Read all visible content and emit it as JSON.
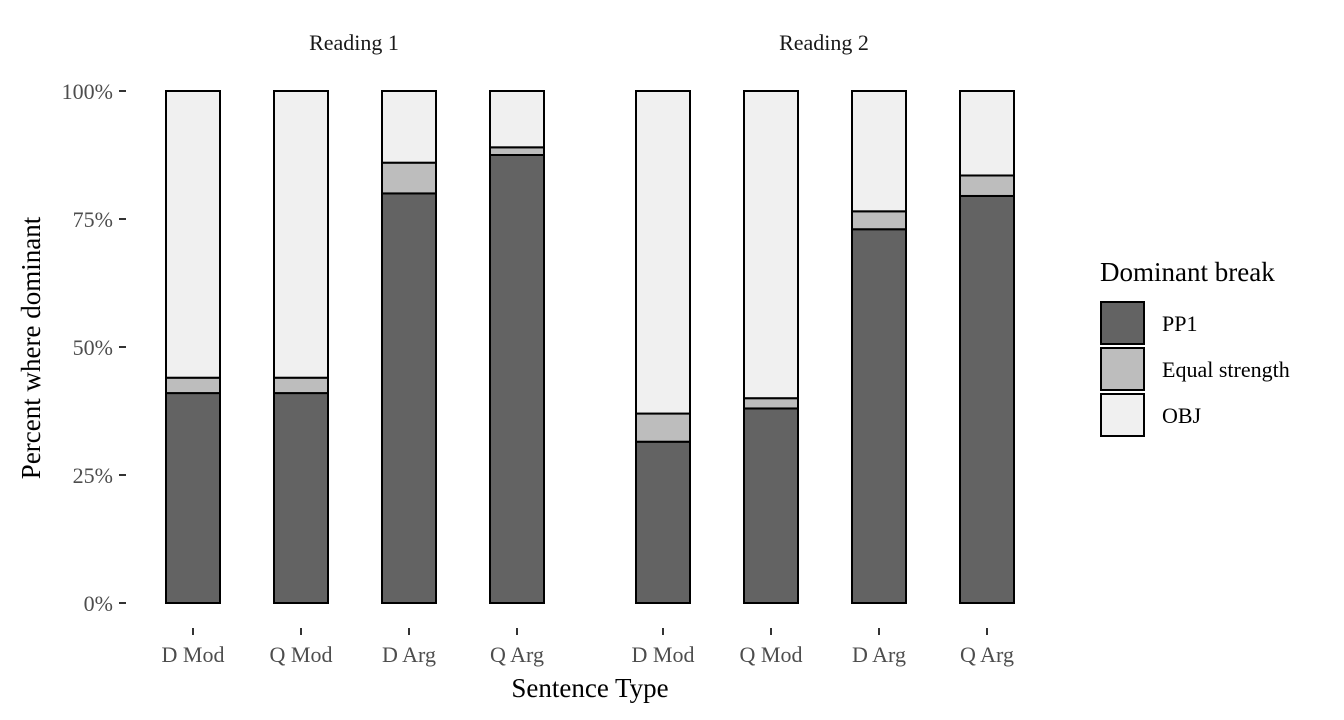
{
  "chart_data": {
    "type": "bar",
    "stacked": true,
    "y_format": "percent",
    "xlabel": "Sentence Type",
    "ylabel": "Percent where dominant",
    "ylim": [
      0,
      1
    ],
    "yticks": [
      0,
      0.25,
      0.5,
      0.75,
      1
    ],
    "ytick_labels": [
      "0%",
      "25%",
      "50%",
      "75%",
      "100%"
    ],
    "grid": false,
    "legend": {
      "title": "Dominant break",
      "position": "right"
    },
    "series_styles": [
      {
        "name": "PP1",
        "color": "#636363"
      },
      {
        "name": "Equal strength",
        "color": "#bdbdbd"
      },
      {
        "name": "OBJ",
        "color": "#f0f0f0"
      }
    ],
    "facets": [
      {
        "title": "Reading 1",
        "categories": [
          "D Mod",
          "Q Mod",
          "D Arg",
          "Q Arg"
        ],
        "series": [
          {
            "name": "PP1",
            "values": [
              0.41,
              0.41,
              0.8,
              0.875
            ]
          },
          {
            "name": "Equal strength",
            "values": [
              0.03,
              0.03,
              0.06,
              0.015
            ]
          },
          {
            "name": "OBJ",
            "values": [
              0.56,
              0.56,
              0.14,
              0.11
            ]
          }
        ]
      },
      {
        "title": "Reading 2",
        "categories": [
          "D Mod",
          "Q Mod",
          "D Arg",
          "Q Arg"
        ],
        "series": [
          {
            "name": "PP1",
            "values": [
              0.315,
              0.38,
              0.73,
              0.795
            ]
          },
          {
            "name": "Equal strength",
            "values": [
              0.055,
              0.02,
              0.035,
              0.04
            ]
          },
          {
            "name": "OBJ",
            "values": [
              0.63,
              0.6,
              0.235,
              0.165
            ]
          }
        ]
      }
    ]
  }
}
